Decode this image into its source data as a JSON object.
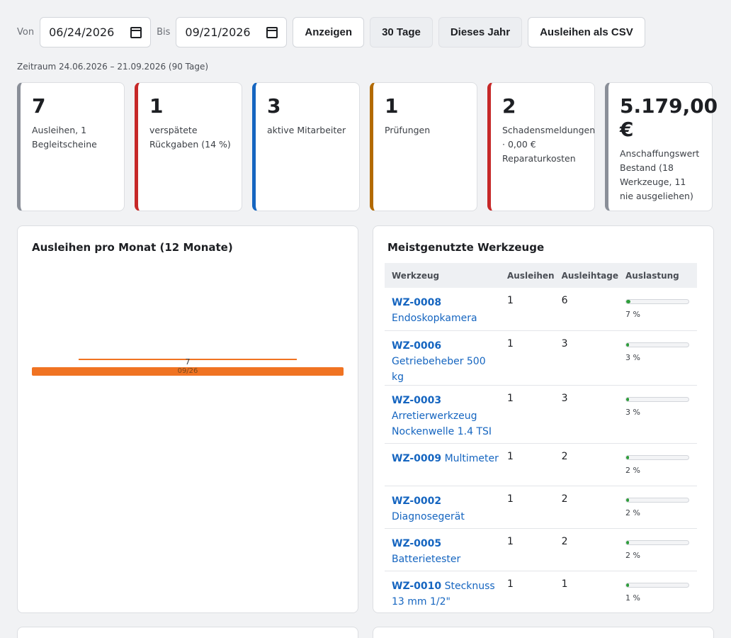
{
  "filters": {
    "from_label": "Von",
    "from_value": "06/24/2026",
    "to_label": "Bis",
    "to_value": "09/21/2026",
    "buttons": [
      "Anzeigen",
      "30 Tage",
      "Dieses Jahr",
      "Ausleihen als CSV"
    ]
  },
  "range_note": "Zeitraum 24.06.2026 – 21.09.2026 (90 Tage)",
  "kpis": [
    {
      "value": "7",
      "desc": "Ausleihen, 1 Begleitscheine",
      "accent": "#8a8f98"
    },
    {
      "value": "1",
      "desc": "verspätete Rückgaben (14 %)",
      "accent": "#c62828"
    },
    {
      "value": "3",
      "desc": "aktive Mitarbeiter",
      "accent": "#1565c0"
    },
    {
      "value": "1",
      "desc": "Prüfungen",
      "accent": "#b26a00"
    },
    {
      "value": "2",
      "desc": "Schadensmeldungen · 0,00 € Reparaturkosten",
      "accent": "#c62828"
    },
    {
      "value": "5.179,00 €",
      "desc": "Anschaffungswert Bestand (18 Werkzeuge, 11 nie ausgeliehen)",
      "accent": "#8a8f98"
    }
  ],
  "chart": {
    "title": "Ausleihen pro Monat (12 Monate)",
    "bar_color": "#f07322"
  },
  "chart_data": {
    "type": "bar",
    "title": "Ausleihen pro Monat (12 Monate)",
    "categories": [
      "09/26"
    ],
    "values": [
      7
    ],
    "data_labels": [
      "7"
    ]
  },
  "tools_table": {
    "title": "Meistgenutzte Werkzeuge",
    "headers": [
      "Werkzeug",
      "Ausleihen",
      "Ausleihtage",
      "Auslastung"
    ],
    "rows": [
      {
        "id": "WZ-0008",
        "name": "Endoskopkamera",
        "loans": "1",
        "days": "6",
        "util": 0.07,
        "util_label": "7 %"
      },
      {
        "id": "WZ-0006",
        "name": "Getriebeheber 500 kg",
        "loans": "1",
        "days": "3",
        "util": 0.03,
        "util_label": "3 %"
      },
      {
        "id": "WZ-0003",
        "name": "Arretierwerkzeug Nockenwelle 1.4 TSI",
        "loans": "1",
        "days": "3",
        "util": 0.03,
        "util_label": "3 %"
      },
      {
        "id": "WZ-0009",
        "name": "Multimeter",
        "loans": "1",
        "days": "2",
        "util": 0.02,
        "util_label": "2 %"
      },
      {
        "id": "WZ-0002",
        "name": "Diagnosegerät",
        "loans": "1",
        "days": "2",
        "util": 0.02,
        "util_label": "2 %"
      },
      {
        "id": "WZ-0005",
        "name": "Batterietester",
        "loans": "1",
        "days": "2",
        "util": 0.02,
        "util_label": "2 %"
      },
      {
        "id": "WZ-0010",
        "name": "Stecknuss 13 mm 1/2\"",
        "loans": "1",
        "days": "1",
        "util": 0.01,
        "util_label": "1 %"
      }
    ]
  }
}
